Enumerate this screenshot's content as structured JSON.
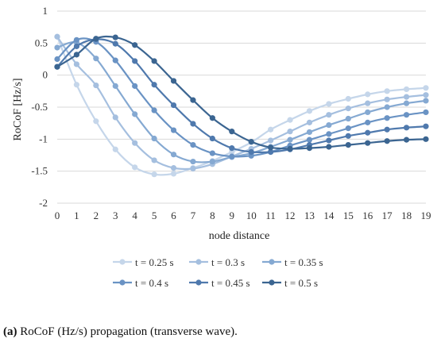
{
  "chart_data": {
    "type": "line",
    "xlabel": "node distance",
    "ylabel": "RoCoF [Hz/s]",
    "xlim": [
      0,
      19
    ],
    "ylim": [
      -2,
      1
    ],
    "x": [
      0,
      1,
      2,
      3,
      4,
      5,
      6,
      7,
      8,
      9,
      10,
      11,
      12,
      13,
      14,
      15,
      16,
      17,
      18,
      19
    ],
    "x_ticks": [
      "0",
      "1",
      "2",
      "3",
      "4",
      "5",
      "6",
      "7",
      "8",
      "9",
      "10",
      "11",
      "12",
      "13",
      "14",
      "15",
      "16",
      "17",
      "18",
      "19"
    ],
    "y_ticks": [
      {
        "value": 1,
        "label": "1"
      },
      {
        "value": 0.5,
        "label": "0.5"
      },
      {
        "value": 0,
        "label": "0"
      },
      {
        "value": -0.5,
        "label": "-0.5"
      },
      {
        "value": -1,
        "label": "-1"
      },
      {
        "value": -1.5,
        "label": "-1.5"
      },
      {
        "value": -2,
        "label": "-2"
      }
    ],
    "grid": "horizontal",
    "legend_position": "bottom",
    "series": [
      {
        "name": "t = 0.25 s",
        "color": "#c5d6ea",
        "values": [
          0.6,
          -0.15,
          -0.72,
          -1.16,
          -1.44,
          -1.55,
          -1.54,
          -1.45,
          -1.34,
          -1.2,
          -1.05,
          -0.85,
          -0.7,
          -0.56,
          -0.45,
          -0.37,
          -0.3,
          -0.25,
          -0.22,
          -0.2
        ]
      },
      {
        "name": "t = 0.3 s",
        "color": "#a5bfdf",
        "values": [
          0.6,
          0.17,
          -0.16,
          -0.66,
          -1.06,
          -1.33,
          -1.45,
          -1.46,
          -1.39,
          -1.27,
          -1.15,
          -1.02,
          -0.88,
          -0.74,
          -0.62,
          -0.52,
          -0.44,
          -0.38,
          -0.34,
          -0.31
        ]
      },
      {
        "name": "t = 0.35 s",
        "color": "#85a9d2",
        "values": [
          0.43,
          0.51,
          0.26,
          -0.17,
          -0.61,
          -0.99,
          -1.24,
          -1.35,
          -1.35,
          -1.28,
          -1.22,
          -1.12,
          -1.01,
          -0.89,
          -0.78,
          -0.68,
          -0.58,
          -0.5,
          -0.44,
          -0.4
        ]
      },
      {
        "name": "t = 0.4 s",
        "color": "#6a93c4",
        "values": [
          0.25,
          0.55,
          0.52,
          0.23,
          -0.17,
          -0.55,
          -0.86,
          -1.09,
          -1.22,
          -1.27,
          -1.26,
          -1.2,
          -1.1,
          -1.01,
          -0.92,
          -0.83,
          -0.74,
          -0.67,
          -0.62,
          -0.58
        ]
      },
      {
        "name": "t = 0.45 s",
        "color": "#4f79ad",
        "values": [
          0.13,
          0.45,
          0.56,
          0.49,
          0.22,
          -0.15,
          -0.47,
          -0.76,
          -0.99,
          -1.14,
          -1.2,
          -1.2,
          -1.16,
          -1.09,
          -1.02,
          -0.95,
          -0.9,
          -0.85,
          -0.82,
          -0.8
        ]
      },
      {
        "name": "t = 0.5 s",
        "color": "#3b6591",
        "values": [
          0.13,
          0.32,
          0.57,
          0.59,
          0.47,
          0.22,
          -0.09,
          -0.39,
          -0.67,
          -0.88,
          -1.04,
          -1.13,
          -1.15,
          -1.14,
          -1.12,
          -1.09,
          -1.06,
          -1.03,
          -1.01,
          -1.0
        ]
      }
    ]
  },
  "caption": {
    "label": "(a)",
    "text": " RoCoF (Hz/s) propagation (transverse wave)."
  }
}
